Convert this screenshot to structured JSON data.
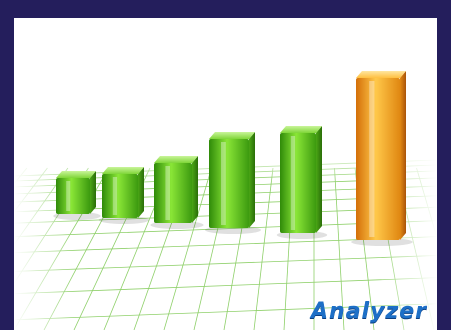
{
  "brand": {
    "text": "Analyzer",
    "color": "#1d6fc7"
  },
  "colors": {
    "frame": "#241e5c",
    "background": "#ffffff",
    "bar_green": "#5fcf1a",
    "bar_orange": "#f4a41a",
    "grid": "#8fd06a"
  },
  "bars": [
    {
      "color": "green",
      "level": 0.22
    },
    {
      "color": "green",
      "level": 0.27
    },
    {
      "color": "green",
      "level": 0.37
    },
    {
      "color": "green",
      "level": 0.55
    },
    {
      "color": "green",
      "level": 0.62
    },
    {
      "color": "orange",
      "level": 1.0
    }
  ]
}
